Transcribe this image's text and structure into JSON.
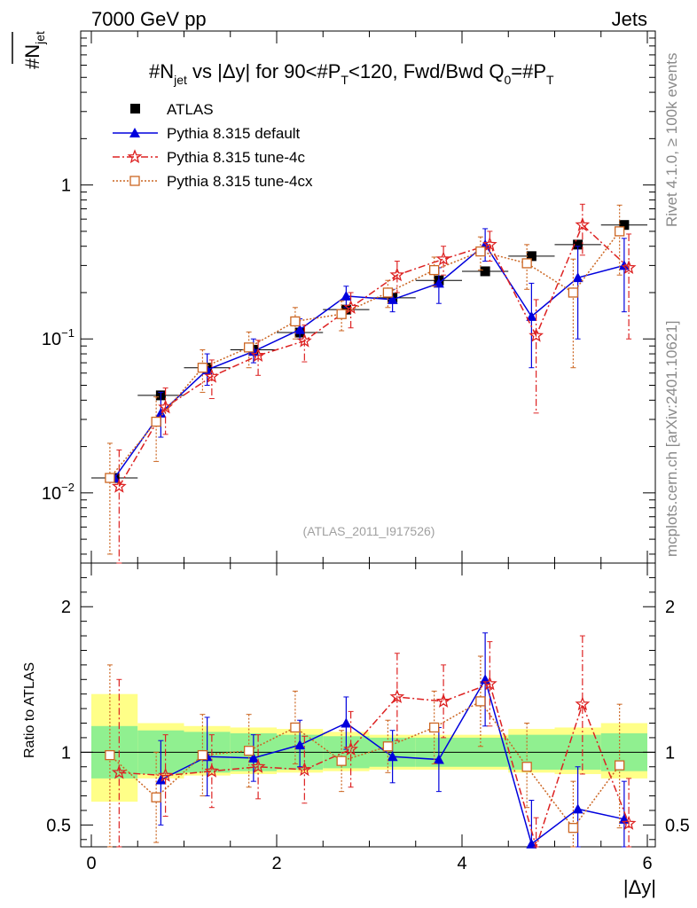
{
  "header": {
    "left": "7000 GeV pp",
    "right": "Jets"
  },
  "side_labels": {
    "rivet": "Rivet 4.1.0, ≥ 100k events",
    "mcplots": "mcplots.cern.ch [arXiv:2401.10621]"
  },
  "chart_data": {
    "type": "scatter",
    "title": "#N_jet vs |Δy| for 90<#P_T<120, Fwd/Bwd Q_0=#P_T",
    "title_parts": {
      "p1": "#N",
      "p1sub": "jet",
      "p2": " vs |Δy| for 90<#P",
      "p2sub": "T",
      "p3": "<120, Fwd/Bwd Q",
      "p3sub": "0",
      "p4": "=#P",
      "p4sub": "T"
    },
    "ylabel": "#N_jet",
    "ylabel_parts": {
      "main": "#N",
      "sub": "jet"
    },
    "ratio_ylabel": "Ratio to ATLAS",
    "xlabel": "|Δy|",
    "analysis_tag": "(ATLAS_2011_I917526)",
    "xlim": [
      0,
      6.1
    ],
    "ylim_main": [
      0.0035,
      10
    ],
    "ylim_ratio": [
      0.35,
      2.3
    ],
    "yscale_main": "log",
    "x_ticks": [
      "0",
      "2",
      "4",
      "6"
    ],
    "x_tick_values": [
      0,
      2,
      4,
      6
    ],
    "y_ticks_main": [
      {
        "label": "10",
        "exp": "−2",
        "value": 0.01
      },
      {
        "label": "10",
        "exp": "−1",
        "value": 0.1
      },
      {
        "label": "1",
        "exp": "",
        "value": 1
      }
    ],
    "y_ticks_ratio": [
      {
        "label": "0.5",
        "value": 0.5
      },
      {
        "label": "1",
        "value": 1
      },
      {
        "label": "2",
        "value": 2
      }
    ],
    "x": [
      0.25,
      0.75,
      1.25,
      1.75,
      2.25,
      2.75,
      3.25,
      3.75,
      4.25,
      4.75,
      5.25,
      5.75
    ],
    "xerr": 0.25,
    "series": [
      {
        "name": "ATLAS",
        "color": "#000000",
        "style": "data",
        "values": [
          0.0125,
          0.043,
          0.065,
          0.085,
          0.11,
          0.155,
          0.185,
          0.24,
          0.275,
          0.345,
          0.41,
          0.55
        ]
      },
      {
        "name": "Pythia 8.315 default",
        "color": "#0000dd",
        "style": "solid",
        "values": [
          0.0125,
          0.033,
          0.063,
          0.083,
          0.115,
          0.19,
          0.18,
          0.23,
          0.41,
          0.14,
          0.25,
          0.3
        ],
        "err_lo": [
          0.0125,
          0.023,
          0.05,
          0.07,
          0.1,
          0.16,
          0.15,
          0.17,
          0.32,
          0.065,
          0.1,
          0.15
        ],
        "err_hi": [
          0.0125,
          0.045,
          0.08,
          0.1,
          0.135,
          0.22,
          0.21,
          0.29,
          0.52,
          0.23,
          0.4,
          0.45
        ]
      },
      {
        "name": "Pythia 8.315 tune-4c",
        "color": "#dd2222",
        "style": "dashdot",
        "values": [
          0.011,
          0.036,
          0.057,
          0.078,
          0.097,
          0.16,
          0.26,
          0.33,
          0.41,
          0.105,
          0.55,
          0.29
        ],
        "err_lo": [
          0.0035,
          0.024,
          0.041,
          0.058,
          0.071,
          0.118,
          0.2,
          0.26,
          0.32,
          0.033,
          0.35,
          0.1
        ],
        "err_hi": [
          0.019,
          0.048,
          0.073,
          0.098,
          0.123,
          0.2,
          0.32,
          0.4,
          0.5,
          0.18,
          0.75,
          0.48
        ]
      },
      {
        "name": "Pythia 8.315 tune-4cx",
        "color": "#cc6622",
        "style": "dotted",
        "values": [
          0.0125,
          0.029,
          0.065,
          0.088,
          0.13,
          0.145,
          0.2,
          0.28,
          0.37,
          0.31,
          0.2,
          0.5
        ],
        "err_lo": [
          0.004,
          0.016,
          0.045,
          0.065,
          0.1,
          0.113,
          0.16,
          0.22,
          0.28,
          0.21,
          0.065,
          0.26
        ],
        "err_hi": [
          0.021,
          0.042,
          0.085,
          0.111,
          0.16,
          0.177,
          0.24,
          0.34,
          0.46,
          0.41,
          0.33,
          0.74
        ]
      }
    ],
    "ratio_series": [
      {
        "name": "Pythia 8.315 default",
        "values": [
          null,
          0.81,
          0.97,
          0.96,
          1.05,
          1.2,
          0.97,
          0.95,
          1.5,
          0.37,
          0.61,
          0.54
        ],
        "err_lo": [
          null,
          0.5,
          0.7,
          0.8,
          0.9,
          1.02,
          0.79,
          0.73,
          1.18,
          0.19,
          0.35,
          0.28
        ],
        "err_hi": [
          null,
          1.08,
          1.24,
          1.12,
          1.22,
          1.38,
          1.15,
          1.17,
          1.82,
          0.67,
          0.9,
          0.8
        ]
      },
      {
        "name": "Pythia 8.315 tune-4c",
        "values": [
          0.86,
          0.84,
          0.87,
          0.9,
          0.88,
          1.02,
          1.38,
          1.35,
          1.47,
          0.3,
          1.33,
          0.51
        ],
        "err_lo": [
          0.35,
          0.56,
          0.62,
          0.68,
          0.65,
          0.76,
          1.08,
          1.1,
          1.18,
          0.1,
          0.85,
          0.2
        ],
        "err_hi": [
          1.5,
          1.12,
          1.12,
          1.12,
          1.11,
          1.28,
          1.68,
          1.6,
          1.76,
          0.55,
          1.8,
          0.82
        ]
      },
      {
        "name": "Pythia 8.315 tune-4cx",
        "values": [
          0.98,
          0.69,
          0.98,
          1.01,
          1.17,
          0.94,
          1.04,
          1.17,
          1.35,
          0.9,
          0.48,
          0.91
        ],
        "err_lo": [
          0.35,
          0.38,
          0.7,
          0.76,
          0.92,
          0.73,
          0.86,
          0.92,
          1.04,
          0.62,
          0.16,
          0.48
        ],
        "err_hi": [
          1.6,
          1.0,
          1.26,
          1.26,
          1.42,
          1.15,
          1.22,
          1.42,
          1.66,
          1.2,
          0.8,
          1.33
        ]
      }
    ],
    "ratio_band_inner": [
      [
        0.82,
        1.18
      ],
      [
        0.85,
        1.15
      ],
      [
        0.86,
        1.14
      ],
      [
        0.87,
        1.13
      ],
      [
        0.88,
        1.12
      ],
      [
        0.89,
        1.11
      ],
      [
        0.9,
        1.1
      ],
      [
        0.9,
        1.1
      ],
      [
        0.9,
        1.1
      ],
      [
        0.88,
        1.12
      ],
      [
        0.88,
        1.12
      ],
      [
        0.87,
        1.13
      ]
    ],
    "ratio_band_outer": [
      [
        0.66,
        1.4
      ],
      [
        0.82,
        1.2
      ],
      [
        0.84,
        1.18
      ],
      [
        0.85,
        1.17
      ],
      [
        0.86,
        1.16
      ],
      [
        0.87,
        1.14
      ],
      [
        0.88,
        1.12
      ],
      [
        0.88,
        1.12
      ],
      [
        0.88,
        1.12
      ],
      [
        0.86,
        1.16
      ],
      [
        0.85,
        1.17
      ],
      [
        0.82,
        1.2
      ]
    ]
  }
}
